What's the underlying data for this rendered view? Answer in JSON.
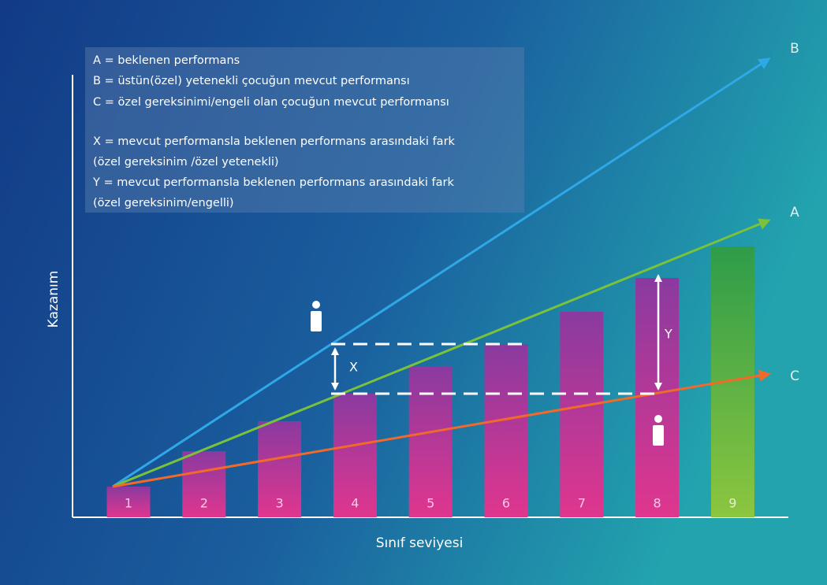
{
  "legend": [
    "A = beklenen performans",
    "B = üstün(özel) yetenekli çocuğun mevcut performansı",
    "C = özel gereksinimi/engeli olan çocuğun mevcut performansı",
    "X = mevcut performansla beklenen performans arasındaki fark",
    "(özel gereksinim /özel yetenekli)",
    "Y = mevcut performansla beklenen performans arasındaki fark",
    "(özel gereksinim/engelli)"
  ],
  "y_axis_label": "Kazanım",
  "x_axis_label": "Sınıf seviyesi",
  "lines": [
    {
      "label": "B",
      "color": "#2fa8e8"
    },
    {
      "label": "A",
      "color": "#7ac23a"
    },
    {
      "label": "C",
      "color": "#f26a2a"
    }
  ],
  "gaps": [
    "X",
    "Y"
  ],
  "bars": [
    {
      "label": "1",
      "height": 39
    },
    {
      "label": "2",
      "height": 84
    },
    {
      "label": "3",
      "height": 122
    },
    {
      "label": "4",
      "height": 157
    },
    {
      "label": "5",
      "height": 192
    },
    {
      "label": "6",
      "height": 220
    },
    {
      "label": "7",
      "height": 261
    },
    {
      "label": "8",
      "height": 304
    },
    {
      "label": "9",
      "height": 344
    }
  ]
}
